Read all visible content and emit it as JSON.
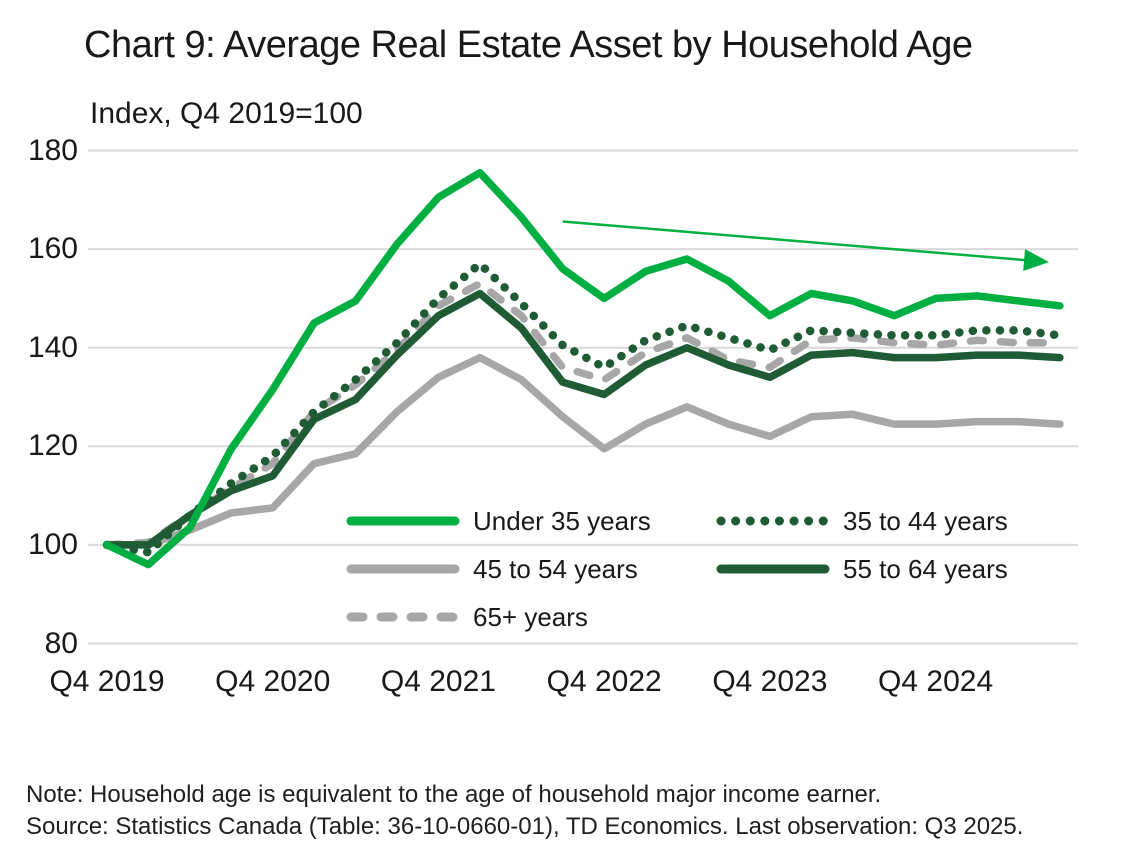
{
  "title": "Chart 9: Average Real Estate Asset by Household Age",
  "y_axis_unit_label": "Index, Q4 2019=100",
  "note": "Note: Household age is equivalent to the age of household major income earner.",
  "source": "Source: Statistics Canada (Table: 36-10-0660-01), TD Economics. Last observation: Q3 2025.",
  "colors": {
    "bright_green": "#00AF41",
    "dark_green": "#1F5C35",
    "gray": "#A7A7A7",
    "gridline": "#D9D9D9",
    "text": "#191919"
  },
  "chart_data": {
    "type": "line",
    "title": "Chart 9: Average Real Estate Asset by Household Age",
    "ylabel": "Index, Q4 2019=100",
    "ylim": [
      80,
      180
    ],
    "y_ticks": [
      80,
      100,
      120,
      140,
      160,
      180
    ],
    "grid": "horizontal",
    "legend_position": "inside-bottom",
    "x": [
      "Q4 2019",
      "Q1 2020",
      "Q2 2020",
      "Q3 2020",
      "Q4 2020",
      "Q1 2021",
      "Q2 2021",
      "Q3 2021",
      "Q4 2021",
      "Q1 2022",
      "Q2 2022",
      "Q3 2022",
      "Q4 2022",
      "Q1 2023",
      "Q2 2023",
      "Q3 2023",
      "Q4 2023",
      "Q1 2024",
      "Q2 2024",
      "Q3 2024",
      "Q4 2024",
      "Q1 2025",
      "Q2 2025",
      "Q3 2025"
    ],
    "x_ticks": [
      {
        "label": "Q4 2019",
        "q": 0
      },
      {
        "label": "Q4 2020",
        "q": 4
      },
      {
        "label": "Q4 2021",
        "q": 8
      },
      {
        "label": "Q4 2022",
        "q": 12
      },
      {
        "label": "Q4 2023",
        "q": 16
      },
      {
        "label": "Q4 2024",
        "q": 20
      }
    ],
    "series": [
      {
        "name": "45 to 54 years",
        "style": "solid",
        "color": "#A7A7A7",
        "values": [
          100,
          100,
          103,
          106.5,
          107.5,
          116.5,
          118.5,
          127,
          134,
          138,
          133.5,
          126,
          119.5,
          124.5,
          128,
          124.5,
          122,
          126,
          126.5,
          124.5,
          124.5,
          125,
          125,
          124.5
        ]
      },
      {
        "name": "65+ years",
        "style": "dashed",
        "color": "#A7A7A7",
        "values": [
          100,
          100.5,
          106,
          111.5,
          116.5,
          127,
          132.5,
          139.5,
          148.5,
          153,
          146.5,
          136,
          133.5,
          139,
          142,
          137.5,
          136,
          141.5,
          142,
          141,
          140.5,
          141.5,
          141,
          141
        ]
      },
      {
        "name": "55 to 64 years",
        "style": "solid",
        "color": "#1F5C35",
        "values": [
          100,
          100,
          106,
          111,
          114,
          125.5,
          129.5,
          138.5,
          146.5,
          151,
          144,
          133,
          130.5,
          136.5,
          140,
          136.5,
          134,
          138.5,
          139,
          138,
          138,
          138.5,
          138.5,
          138
        ]
      },
      {
        "name": "35 to 44 years",
        "style": "dotted",
        "color": "#1F5C35",
        "values": [
          100,
          98.5,
          106,
          112.5,
          118,
          127,
          133.5,
          141,
          150,
          157,
          149,
          140.5,
          136,
          141.5,
          144.5,
          142,
          139.5,
          143.5,
          143,
          142.5,
          142.5,
          143.5,
          143.5,
          142.5
        ]
      },
      {
        "name": "Under 35 years",
        "style": "solid",
        "color": "#00AF41",
        "values": [
          100,
          96,
          103.5,
          119.5,
          131.5,
          145,
          149.5,
          161,
          170.5,
          175.5,
          166.5,
          156,
          150,
          155.5,
          158,
          153.5,
          146.5,
          151,
          149.5,
          146.5,
          150,
          150.5,
          149.5,
          148.5
        ]
      }
    ],
    "annotation_arrow": {
      "from_q": 11.0,
      "from_value": 165.6,
      "to_q": 22.4,
      "to_value": 157.6,
      "color": "#00AF41"
    },
    "legend_order": [
      "Under 35 years",
      "35 to 44 years",
      "45 to 54 years",
      "55 to 64 years",
      "65+ years"
    ]
  }
}
